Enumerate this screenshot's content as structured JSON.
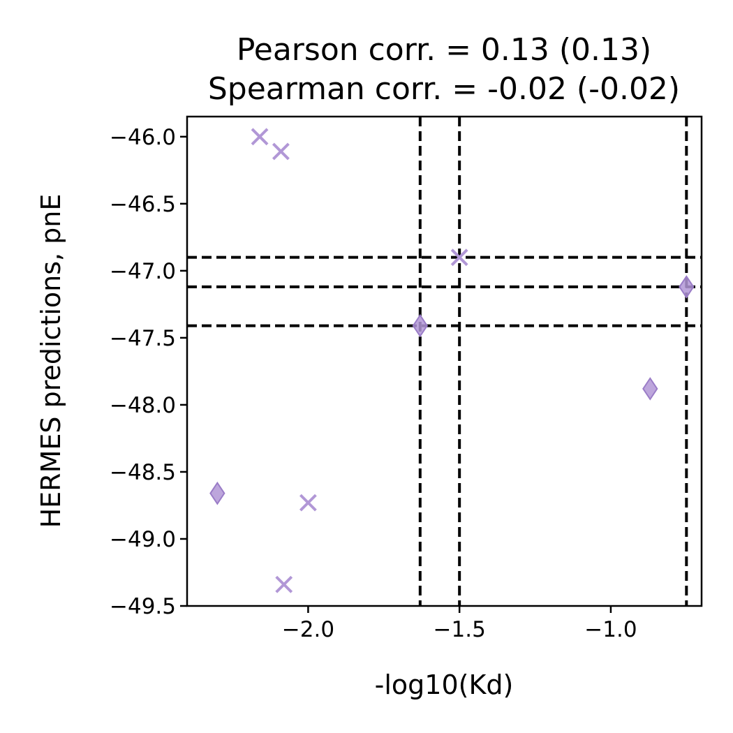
{
  "chart_data": {
    "type": "scatter",
    "title_lines": [
      "Pearson corr. = 0.13 (0.13)",
      "Spearman corr. = -0.02 (-0.02)"
    ],
    "xlabel": "-log10(Kd)",
    "ylabel": "HERMES predictions, pnE",
    "xlim": [
      -2.4,
      -0.7
    ],
    "ylim": [
      -49.5,
      -45.85
    ],
    "xticks": [
      -2.0,
      -1.5,
      -1.0
    ],
    "xtick_labels": [
      "−2.0",
      "−1.5",
      "−1.0"
    ],
    "yticks": [
      -46.0,
      -46.5,
      -47.0,
      -47.5,
      -48.0,
      -48.5,
      -49.0,
      -49.5
    ],
    "ytick_labels": [
      "−46.0",
      "−46.5",
      "−47.0",
      "−47.5",
      "−48.0",
      "−48.5",
      "−49.0",
      "−49.5"
    ],
    "grid": false,
    "marker_color": "#b197d6",
    "series": [
      {
        "marker": "x",
        "points": [
          {
            "x": -2.16,
            "y": -46.0
          },
          {
            "x": -2.09,
            "y": -46.11
          },
          {
            "x": -1.5,
            "y": -46.9
          },
          {
            "x": -2.0,
            "y": -48.73
          },
          {
            "x": -2.08,
            "y": -49.34
          }
        ]
      },
      {
        "marker": "diamond",
        "points": [
          {
            "x": -2.3,
            "y": -48.66
          },
          {
            "x": -1.63,
            "y": -47.41
          },
          {
            "x": -0.75,
            "y": -47.12
          },
          {
            "x": -0.87,
            "y": -47.88
          }
        ]
      }
    ],
    "reference_lines": {
      "color": "#000000",
      "style": "dashed",
      "vertical_x": [
        -1.63,
        -1.5,
        -0.75
      ],
      "horizontal_y": [
        -46.9,
        -47.12,
        -47.41
      ]
    }
  }
}
